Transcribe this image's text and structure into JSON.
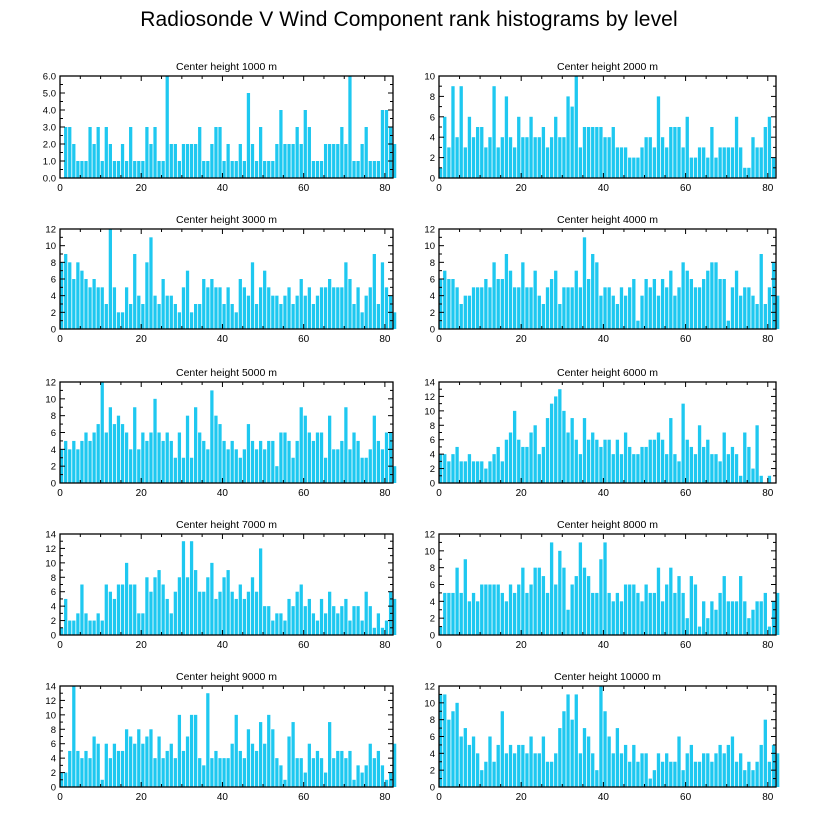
{
  "title": "Radiosonde V Wind Component rank histograms by level",
  "colors": {
    "bar": "#1ec8f0",
    "axis": "#000000",
    "background": "#ffffff"
  },
  "chart_data": [
    {
      "type": "bar",
      "title": "Center height 1000 m",
      "xlabel": "",
      "ylabel": "",
      "xlim": [
        0,
        82
      ],
      "ylim": [
        0,
        6
      ],
      "xticks": [
        "0",
        "20",
        "40",
        "60",
        "80"
      ],
      "yticks": [
        "0.0",
        "1.0",
        "2.0",
        "3.0",
        "4.0",
        "5.0",
        "6.0"
      ],
      "values": [
        0,
        3,
        3,
        2,
        1,
        1,
        1,
        3,
        2,
        3,
        1,
        3,
        2,
        1,
        1,
        2,
        1,
        3,
        1,
        1,
        1,
        3,
        2,
        3,
        1,
        1,
        6,
        2,
        2,
        1,
        2,
        2,
        2,
        2,
        3,
        1,
        1,
        2,
        3,
        3,
        1,
        2,
        1,
        1,
        2,
        1,
        5,
        2,
        1,
        3,
        1,
        1,
        1,
        2,
        4,
        2,
        2,
        2,
        3,
        2,
        4,
        3,
        1,
        1,
        1,
        2,
        2,
        2,
        2,
        3,
        2,
        6,
        1,
        1,
        2,
        3,
        1,
        1,
        1,
        4,
        4,
        3,
        2
      ]
    },
    {
      "type": "bar",
      "title": "Center height 2000 m",
      "xlabel": "",
      "ylabel": "",
      "xlim": [
        0,
        82
      ],
      "ylim": [
        0,
        10
      ],
      "xticks": [
        "0",
        "20",
        "40",
        "60",
        "80"
      ],
      "yticks": [
        "0",
        "2",
        "4",
        "6",
        "8",
        "10"
      ],
      "values": [
        1,
        6,
        3,
        9,
        4,
        9,
        3,
        6,
        4,
        5,
        5,
        3,
        4,
        9,
        3,
        4,
        8,
        4,
        3,
        6,
        4,
        4,
        6,
        4,
        4,
        5,
        3,
        4,
        6,
        4,
        4,
        8,
        7,
        10,
        3,
        5,
        5,
        5,
        5,
        5,
        4,
        4,
        5,
        3,
        3,
        3,
        2,
        2,
        2,
        3,
        4,
        4,
        3,
        8,
        4,
        3,
        5,
        5,
        5,
        3,
        6,
        2,
        2,
        3,
        3,
        2,
        5,
        2,
        3,
        3,
        3,
        3,
        6,
        3,
        1,
        1,
        4,
        3,
        3,
        5,
        6,
        2
      ]
    },
    {
      "type": "bar",
      "title": "Center height 3000 m",
      "xlabel": "",
      "ylabel": "",
      "xlim": [
        0,
        82
      ],
      "ylim": [
        0,
        12
      ],
      "xticks": [
        "0",
        "20",
        "40",
        "60",
        "80"
      ],
      "yticks": [
        "0",
        "2",
        "4",
        "6",
        "8",
        "10",
        "12"
      ],
      "values": [
        8,
        9,
        8,
        6,
        8,
        7,
        6,
        5,
        6,
        5,
        5,
        3,
        12,
        5,
        2,
        2,
        5,
        3,
        9,
        4,
        3,
        8,
        11,
        4,
        3,
        6,
        4,
        4,
        3,
        2,
        5,
        7,
        2,
        3,
        3,
        6,
        5,
        6,
        5,
        5,
        3,
        5,
        3,
        2,
        6,
        5,
        4,
        8,
        3,
        5,
        7,
        5,
        4,
        4,
        3,
        4,
        5,
        3,
        4,
        6,
        4,
        5,
        3,
        4,
        5,
        5,
        6,
        5,
        5,
        5,
        8,
        6,
        3,
        5,
        2,
        4,
        5,
        9,
        3,
        8,
        5,
        4,
        2
      ]
    },
    {
      "type": "bar",
      "title": "Center height 4000 m",
      "xlabel": "",
      "ylabel": "",
      "xlim": [
        0,
        82
      ],
      "ylim": [
        0,
        12
      ],
      "xticks": [
        "0",
        "20",
        "40",
        "60",
        "80"
      ],
      "yticks": [
        "0",
        "2",
        "4",
        "6",
        "8",
        "10",
        "12"
      ],
      "values": [
        6,
        7,
        6,
        6,
        5,
        3,
        4,
        4,
        5,
        5,
        5,
        6,
        5,
        8,
        6,
        6,
        9,
        7,
        5,
        5,
        8,
        5,
        5,
        7,
        4,
        3,
        5,
        6,
        7,
        3,
        5,
        5,
        5,
        7,
        5,
        11,
        6,
        9,
        8,
        4,
        5,
        5,
        4,
        3,
        5,
        4,
        5,
        6,
        1,
        4,
        6,
        5,
        6,
        4,
        6,
        5,
        7,
        4,
        5,
        8,
        7,
        6,
        5,
        5,
        6,
        7,
        8,
        8,
        6,
        6,
        1,
        5,
        7,
        4,
        5,
        5,
        4,
        3,
        9,
        3,
        5,
        8,
        4
      ]
    },
    {
      "type": "bar",
      "title": "Center height 5000 m",
      "xlabel": "",
      "ylabel": "",
      "xlim": [
        0,
        82
      ],
      "ylim": [
        0,
        12
      ],
      "xticks": [
        "0",
        "20",
        "40",
        "60",
        "80"
      ],
      "yticks": [
        "0",
        "2",
        "4",
        "6",
        "8",
        "10",
        "12"
      ],
      "values": [
        4,
        5,
        4,
        5,
        4,
        5,
        6,
        5,
        6,
        7,
        12,
        6,
        9,
        7,
        8,
        7,
        6,
        4,
        9,
        4,
        6,
        5,
        6,
        10,
        6,
        5,
        6,
        5,
        3,
        6,
        3,
        8,
        3,
        9,
        6,
        5,
        4,
        11,
        8,
        7,
        5,
        4,
        5,
        4,
        3,
        4,
        7,
        5,
        4,
        5,
        4,
        5,
        5,
        2,
        6,
        6,
        5,
        3,
        5,
        9,
        8,
        6,
        5,
        6,
        6,
        3,
        8,
        4,
        4,
        5,
        9,
        4,
        6,
        5,
        3,
        3,
        4,
        8,
        5,
        4,
        6,
        6,
        2
      ]
    },
    {
      "type": "bar",
      "title": "Center height 6000 m",
      "xlabel": "",
      "ylabel": "",
      "xlim": [
        0,
        82
      ],
      "ylim": [
        0,
        14
      ],
      "xticks": [
        "0",
        "20",
        "40",
        "60",
        "80"
      ],
      "yticks": [
        "0",
        "2",
        "4",
        "6",
        "8",
        "10",
        "12",
        "14"
      ],
      "values": [
        4,
        4,
        3,
        4,
        5,
        3,
        3,
        4,
        3,
        3,
        3,
        2,
        3,
        4,
        5,
        3,
        6,
        7,
        10,
        6,
        5,
        5,
        7,
        8,
        4,
        5,
        9,
        11,
        12,
        13,
        10,
        7,
        9,
        6,
        4,
        9,
        6,
        7,
        6,
        5,
        6,
        6,
        4,
        6,
        4,
        7,
        5,
        4,
        4,
        5,
        5,
        6,
        6,
        7,
        6,
        4,
        9,
        4,
        3,
        11,
        6,
        5,
        4,
        8,
        5,
        6,
        4,
        4,
        3,
        7,
        4,
        5,
        4,
        1,
        7,
        5,
        2,
        8,
        1,
        0,
        1
      ]
    },
    {
      "type": "bar",
      "title": "Center height 7000 m",
      "xlabel": "",
      "ylabel": "",
      "xlim": [
        0,
        82
      ],
      "ylim": [
        0,
        14
      ],
      "xticks": [
        "0",
        "20",
        "40",
        "60",
        "80"
      ],
      "yticks": [
        "0",
        "2",
        "4",
        "6",
        "8",
        "10",
        "12",
        "14"
      ],
      "values": [
        1,
        5,
        2,
        2,
        3,
        7,
        3,
        2,
        2,
        3,
        2,
        7,
        6,
        5,
        7,
        7,
        10,
        7,
        7,
        3,
        3,
        8,
        6,
        8,
        9,
        7,
        5,
        3,
        6,
        8,
        13,
        8,
        13,
        9,
        6,
        6,
        8,
        10,
        5,
        6,
        8,
        9,
        6,
        5,
        7,
        5,
        6,
        8,
        6,
        12,
        4,
        4,
        2,
        3,
        3,
        2,
        5,
        4,
        6,
        7,
        4,
        5,
        3,
        2,
        5,
        3,
        6,
        4,
        3,
        4,
        5,
        2,
        4,
        4,
        2,
        6,
        4,
        1,
        3,
        1,
        2,
        6,
        5
      ]
    },
    {
      "type": "bar",
      "title": "Center height 8000 m",
      "xlabel": "",
      "ylabel": "",
      "xlim": [
        0,
        82
      ],
      "ylim": [
        0,
        12
      ],
      "xticks": [
        "0",
        "20",
        "40",
        "60",
        "80"
      ],
      "yticks": [
        "0",
        "2",
        "4",
        "6",
        "8",
        "10",
        "12"
      ],
      "values": [
        1,
        5,
        5,
        5,
        8,
        5,
        9,
        4,
        5,
        4,
        6,
        6,
        6,
        6,
        6,
        5,
        4,
        6,
        5,
        6,
        8,
        5,
        6,
        8,
        8,
        7,
        5,
        11,
        6,
        10,
        8,
        3,
        6,
        7,
        11,
        8,
        7,
        5,
        5,
        9,
        11,
        5,
        4,
        5,
        4,
        6,
        6,
        6,
        5,
        4,
        6,
        5,
        5,
        8,
        4,
        6,
        8,
        5,
        7,
        5,
        2,
        7,
        6,
        1,
        4,
        2,
        4,
        3,
        5,
        7,
        4,
        4,
        4,
        7,
        4,
        2,
        3,
        4,
        4,
        5,
        1,
        4,
        5
      ]
    },
    {
      "type": "bar",
      "title": "Center height 9000 m",
      "xlabel": "",
      "ylabel": "",
      "xlim": [
        0,
        82
      ],
      "ylim": [
        0,
        14
      ],
      "xticks": [
        "0",
        "20",
        "40",
        "60",
        "80"
      ],
      "yticks": [
        "0",
        "2",
        "4",
        "6",
        "8",
        "10",
        "12",
        "14"
      ],
      "values": [
        2,
        2,
        5,
        14,
        5,
        4,
        5,
        4,
        7,
        6,
        1,
        6,
        4,
        6,
        5,
        5,
        8,
        7,
        6,
        8,
        6,
        7,
        8,
        4,
        7,
        4,
        5,
        6,
        4,
        10,
        5,
        7,
        10,
        10,
        4,
        3,
        13,
        4,
        5,
        4,
        4,
        4,
        6,
        10,
        5,
        4,
        8,
        6,
        5,
        9,
        6,
        10,
        8,
        4,
        3,
        1,
        7,
        9,
        4,
        4,
        2,
        6,
        4,
        5,
        4,
        2,
        9,
        4,
        5,
        5,
        4,
        5,
        1,
        3,
        2,
        3,
        6,
        4,
        5,
        3,
        1,
        2,
        6
      ]
    },
    {
      "type": "bar",
      "title": "Center height 10000 m",
      "xlabel": "",
      "ylabel": "",
      "xlim": [
        0,
        82
      ],
      "ylim": [
        0,
        12
      ],
      "xticks": [
        "0",
        "20",
        "40",
        "60",
        "80"
      ],
      "yticks": [
        "0",
        "2",
        "4",
        "6",
        "8",
        "10",
        "12"
      ],
      "values": [
        11,
        11,
        8,
        9,
        10,
        6,
        7,
        5,
        6,
        4,
        2,
        3,
        6,
        3,
        5,
        9,
        4,
        5,
        4,
        5,
        5,
        4,
        6,
        4,
        4,
        6,
        3,
        3,
        4,
        7,
        9,
        11,
        8,
        11,
        4,
        7,
        6,
        4,
        2,
        12,
        9,
        6,
        4,
        7,
        4,
        5,
        3,
        5,
        3,
        4,
        4,
        1,
        2,
        4,
        3,
        4,
        3,
        3,
        6,
        2,
        4,
        5,
        3,
        3,
        4,
        4,
        3,
        4,
        5,
        4,
        5,
        6,
        3,
        4,
        2,
        3,
        2,
        3,
        5,
        8,
        3,
        5,
        4
      ]
    }
  ]
}
